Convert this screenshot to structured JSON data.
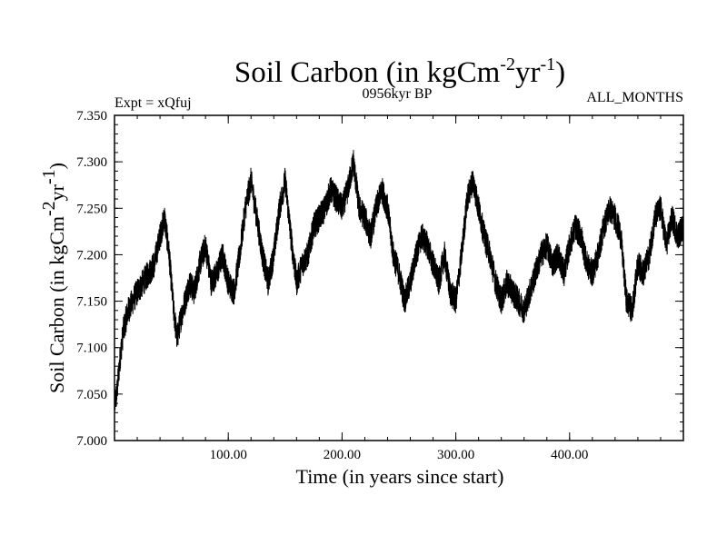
{
  "chart_data": {
    "type": "line",
    "title_main": "Soil Carbon (in kgCm",
    "title_exp1": "-2",
    "title_mid": "yr",
    "title_exp2": "-1",
    "title_close": ")",
    "left_label": "Expt = xQfuj",
    "center_label": "0956kyr BP",
    "right_label": "ALL_MONTHS",
    "xlabel": "Time (in years since start)",
    "ylabel_main": "Soil Carbon (in kgCm",
    "ylabel_exp1": "-2",
    "ylabel_mid": "yr",
    "ylabel_exp2": "-1",
    "ylabel_close": ")",
    "xlim": [
      0,
      500
    ],
    "ylim": [
      7.0,
      7.35
    ],
    "xticks": [
      100,
      200,
      300,
      400
    ],
    "xtick_labels": [
      "100.00",
      "200.00",
      "300.00",
      "400.00"
    ],
    "yticks": [
      7.0,
      7.05,
      7.1,
      7.15,
      7.2,
      7.25,
      7.3,
      7.35
    ],
    "ytick_labels": [
      "7.000",
      "7.050",
      "7.100",
      "7.150",
      "7.200",
      "7.250",
      "7.300",
      "7.350"
    ],
    "series": [
      {
        "name": "soil carbon",
        "x": [
          0,
          2,
          5,
          8,
          12,
          16,
          20,
          25,
          30,
          35,
          40,
          44,
          48,
          52,
          55,
          58,
          62,
          66,
          70,
          75,
          80,
          85,
          90,
          95,
          100,
          105,
          110,
          115,
          120,
          125,
          130,
          135,
          140,
          145,
          150,
          155,
          160,
          165,
          170,
          175,
          180,
          185,
          190,
          195,
          200,
          205,
          210,
          215,
          220,
          225,
          230,
          235,
          240,
          245,
          250,
          255,
          260,
          265,
          270,
          275,
          280,
          285,
          290,
          295,
          300,
          305,
          310,
          315,
          320,
          325,
          330,
          335,
          340,
          345,
          350,
          355,
          360,
          365,
          370,
          375,
          380,
          385,
          390,
          395,
          400,
          405,
          410,
          415,
          420,
          425,
          430,
          435,
          440,
          445,
          450,
          455,
          460,
          465,
          470,
          475,
          480,
          485,
          490,
          495,
          500
        ],
        "y": [
          7.04,
          7.05,
          7.09,
          7.12,
          7.14,
          7.15,
          7.16,
          7.17,
          7.18,
          7.19,
          7.22,
          7.24,
          7.2,
          7.14,
          7.11,
          7.13,
          7.15,
          7.17,
          7.16,
          7.19,
          7.21,
          7.17,
          7.18,
          7.2,
          7.17,
          7.16,
          7.2,
          7.25,
          7.28,
          7.24,
          7.2,
          7.17,
          7.2,
          7.25,
          7.28,
          7.22,
          7.17,
          7.19,
          7.2,
          7.23,
          7.24,
          7.25,
          7.27,
          7.26,
          7.25,
          7.27,
          7.3,
          7.25,
          7.24,
          7.22,
          7.25,
          7.27,
          7.25,
          7.2,
          7.18,
          7.15,
          7.17,
          7.2,
          7.22,
          7.21,
          7.19,
          7.17,
          7.2,
          7.16,
          7.15,
          7.2,
          7.26,
          7.28,
          7.25,
          7.22,
          7.2,
          7.17,
          7.15,
          7.17,
          7.16,
          7.15,
          7.14,
          7.16,
          7.18,
          7.2,
          7.21,
          7.19,
          7.2,
          7.18,
          7.21,
          7.23,
          7.22,
          7.19,
          7.18,
          7.2,
          7.23,
          7.25,
          7.24,
          7.22,
          7.15,
          7.14,
          7.19,
          7.18,
          7.2,
          7.24,
          7.25,
          7.21,
          7.24,
          7.22,
          7.23
        ],
        "color": "#000000"
      }
    ]
  }
}
